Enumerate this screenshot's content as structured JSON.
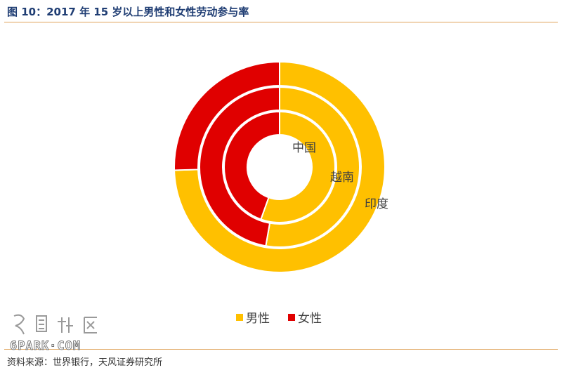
{
  "header": {
    "title": "图 10：2017 年 15 岁以上男性和女性劳动参与率"
  },
  "footer": {
    "source": "资料来源：世界银行，天风证券研究所"
  },
  "watermark": {
    "text_top": "留园社区",
    "text_bottom": "6PARK·COM"
  },
  "colors": {
    "male": "#ffc000",
    "female": "#e00000",
    "title": "#1f3d73",
    "rule": "#e0a35a"
  },
  "chart_data": {
    "type": "pie",
    "subtype": "doughnut",
    "title": "",
    "rings": [
      "中国",
      "越南",
      "印度"
    ],
    "series": [
      {
        "name": "男性",
        "values": [
          76,
          86,
          79
        ]
      },
      {
        "name": "女性",
        "values": [
          61,
          77,
          27
        ]
      }
    ],
    "legend": {
      "position": "bottom",
      "entries": [
        "男性",
        "女性"
      ]
    }
  }
}
